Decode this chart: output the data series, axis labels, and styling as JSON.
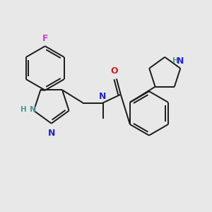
{
  "background_color": "#e8e8e8",
  "figure_size": [
    3.0,
    3.0
  ],
  "dpi": 100,
  "bond_color": "#1a1a1a",
  "bond_lw": 1.4,
  "F_color": "#cc44cc",
  "N_blue_color": "#2222cc",
  "N_teal_color": "#4d9999",
  "O_color": "#cc2222",
  "xlim": [
    0,
    10
  ],
  "ylim": [
    0,
    10
  ]
}
